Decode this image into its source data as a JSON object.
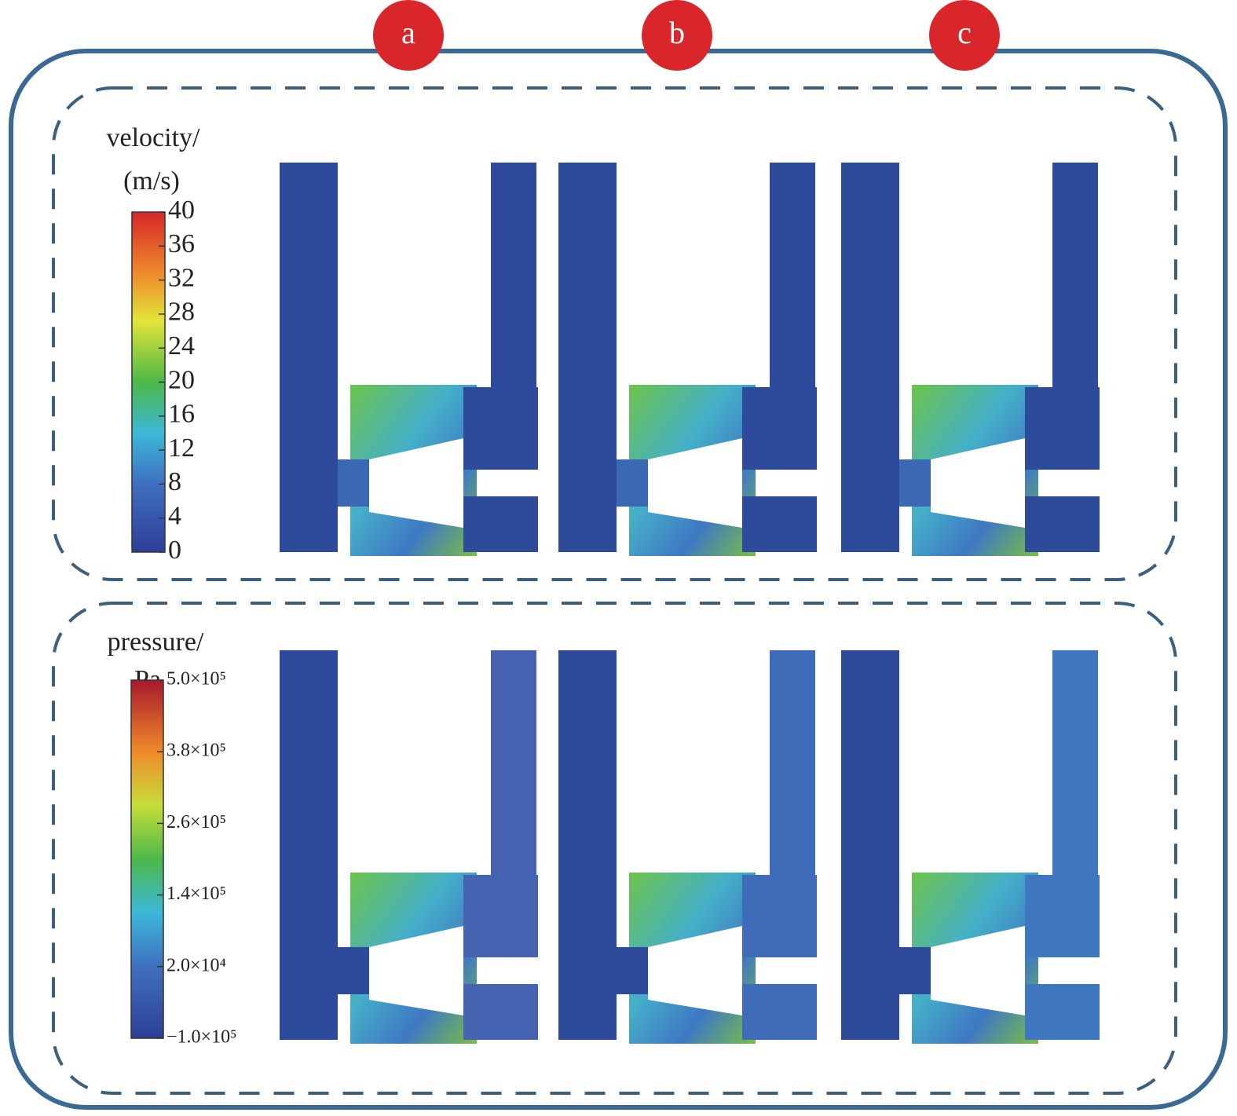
{
  "labels": [
    "a",
    "b",
    "c"
  ],
  "velocity": {
    "title": "velocity/",
    "unit": "(m/s)",
    "range": [
      0,
      40
    ],
    "ticks": [
      0,
      4,
      8,
      12,
      16,
      20,
      24,
      28,
      32,
      36,
      40
    ]
  },
  "pressure": {
    "title": "pressure/",
    "unit": "Pa",
    "range": [
      -100000,
      500000
    ],
    "ticks": [
      {
        "value": -100000,
        "label": "−1.0×10⁵"
      },
      {
        "value": 20000,
        "label": "2.0×10⁴"
      },
      {
        "value": 140000,
        "label": "1.4×10⁵"
      },
      {
        "value": 260000,
        "label": "2.6×10⁵"
      },
      {
        "value": 380000,
        "label": "3.8×10⁵"
      },
      {
        "value": 500000,
        "label": "5.0×10⁵"
      }
    ]
  }
}
